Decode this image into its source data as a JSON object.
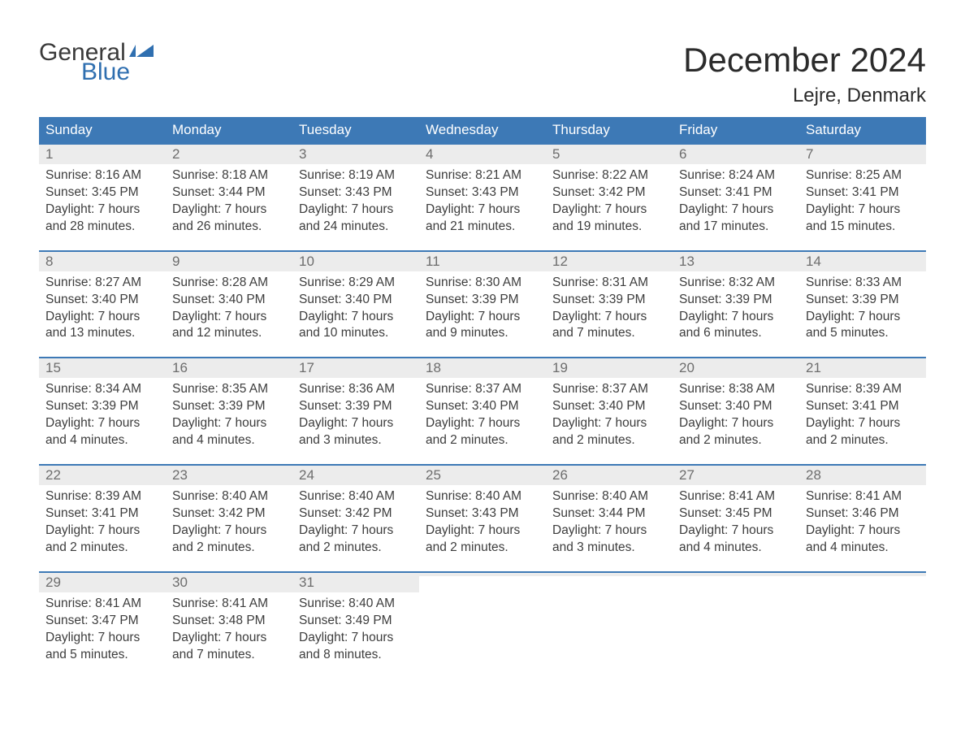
{
  "brand": {
    "word1": "General",
    "word2": "Blue",
    "tri_color": "#2f6fb0"
  },
  "header": {
    "month_title": "December 2024",
    "location": "Lejre, Denmark"
  },
  "colors": {
    "header_bg": "#3d79b6",
    "header_text": "#ffffff",
    "week_border": "#3d79b6",
    "daynum_bg": "#ececec",
    "daynum_text": "#6d6d6d",
    "body_text": "#3d3d3d",
    "page_bg": "#ffffff"
  },
  "day_names": [
    "Sunday",
    "Monday",
    "Tuesday",
    "Wednesday",
    "Thursday",
    "Friday",
    "Saturday"
  ],
  "weeks": [
    [
      {
        "n": "1",
        "sr": "Sunrise: 8:16 AM",
        "ss": "Sunset: 3:45 PM",
        "d1": "Daylight: 7 hours",
        "d2": "and 28 minutes."
      },
      {
        "n": "2",
        "sr": "Sunrise: 8:18 AM",
        "ss": "Sunset: 3:44 PM",
        "d1": "Daylight: 7 hours",
        "d2": "and 26 minutes."
      },
      {
        "n": "3",
        "sr": "Sunrise: 8:19 AM",
        "ss": "Sunset: 3:43 PM",
        "d1": "Daylight: 7 hours",
        "d2": "and 24 minutes."
      },
      {
        "n": "4",
        "sr": "Sunrise: 8:21 AM",
        "ss": "Sunset: 3:43 PM",
        "d1": "Daylight: 7 hours",
        "d2": "and 21 minutes."
      },
      {
        "n": "5",
        "sr": "Sunrise: 8:22 AM",
        "ss": "Sunset: 3:42 PM",
        "d1": "Daylight: 7 hours",
        "d2": "and 19 minutes."
      },
      {
        "n": "6",
        "sr": "Sunrise: 8:24 AM",
        "ss": "Sunset: 3:41 PM",
        "d1": "Daylight: 7 hours",
        "d2": "and 17 minutes."
      },
      {
        "n": "7",
        "sr": "Sunrise: 8:25 AM",
        "ss": "Sunset: 3:41 PM",
        "d1": "Daylight: 7 hours",
        "d2": "and 15 minutes."
      }
    ],
    [
      {
        "n": "8",
        "sr": "Sunrise: 8:27 AM",
        "ss": "Sunset: 3:40 PM",
        "d1": "Daylight: 7 hours",
        "d2": "and 13 minutes."
      },
      {
        "n": "9",
        "sr": "Sunrise: 8:28 AM",
        "ss": "Sunset: 3:40 PM",
        "d1": "Daylight: 7 hours",
        "d2": "and 12 minutes."
      },
      {
        "n": "10",
        "sr": "Sunrise: 8:29 AM",
        "ss": "Sunset: 3:40 PM",
        "d1": "Daylight: 7 hours",
        "d2": "and 10 minutes."
      },
      {
        "n": "11",
        "sr": "Sunrise: 8:30 AM",
        "ss": "Sunset: 3:39 PM",
        "d1": "Daylight: 7 hours",
        "d2": "and 9 minutes."
      },
      {
        "n": "12",
        "sr": "Sunrise: 8:31 AM",
        "ss": "Sunset: 3:39 PM",
        "d1": "Daylight: 7 hours",
        "d2": "and 7 minutes."
      },
      {
        "n": "13",
        "sr": "Sunrise: 8:32 AM",
        "ss": "Sunset: 3:39 PM",
        "d1": "Daylight: 7 hours",
        "d2": "and 6 minutes."
      },
      {
        "n": "14",
        "sr": "Sunrise: 8:33 AM",
        "ss": "Sunset: 3:39 PM",
        "d1": "Daylight: 7 hours",
        "d2": "and 5 minutes."
      }
    ],
    [
      {
        "n": "15",
        "sr": "Sunrise: 8:34 AM",
        "ss": "Sunset: 3:39 PM",
        "d1": "Daylight: 7 hours",
        "d2": "and 4 minutes."
      },
      {
        "n": "16",
        "sr": "Sunrise: 8:35 AM",
        "ss": "Sunset: 3:39 PM",
        "d1": "Daylight: 7 hours",
        "d2": "and 4 minutes."
      },
      {
        "n": "17",
        "sr": "Sunrise: 8:36 AM",
        "ss": "Sunset: 3:39 PM",
        "d1": "Daylight: 7 hours",
        "d2": "and 3 minutes."
      },
      {
        "n": "18",
        "sr": "Sunrise: 8:37 AM",
        "ss": "Sunset: 3:40 PM",
        "d1": "Daylight: 7 hours",
        "d2": "and 2 minutes."
      },
      {
        "n": "19",
        "sr": "Sunrise: 8:37 AM",
        "ss": "Sunset: 3:40 PM",
        "d1": "Daylight: 7 hours",
        "d2": "and 2 minutes."
      },
      {
        "n": "20",
        "sr": "Sunrise: 8:38 AM",
        "ss": "Sunset: 3:40 PM",
        "d1": "Daylight: 7 hours",
        "d2": "and 2 minutes."
      },
      {
        "n": "21",
        "sr": "Sunrise: 8:39 AM",
        "ss": "Sunset: 3:41 PM",
        "d1": "Daylight: 7 hours",
        "d2": "and 2 minutes."
      }
    ],
    [
      {
        "n": "22",
        "sr": "Sunrise: 8:39 AM",
        "ss": "Sunset: 3:41 PM",
        "d1": "Daylight: 7 hours",
        "d2": "and 2 minutes."
      },
      {
        "n": "23",
        "sr": "Sunrise: 8:40 AM",
        "ss": "Sunset: 3:42 PM",
        "d1": "Daylight: 7 hours",
        "d2": "and 2 minutes."
      },
      {
        "n": "24",
        "sr": "Sunrise: 8:40 AM",
        "ss": "Sunset: 3:42 PM",
        "d1": "Daylight: 7 hours",
        "d2": "and 2 minutes."
      },
      {
        "n": "25",
        "sr": "Sunrise: 8:40 AM",
        "ss": "Sunset: 3:43 PM",
        "d1": "Daylight: 7 hours",
        "d2": "and 2 minutes."
      },
      {
        "n": "26",
        "sr": "Sunrise: 8:40 AM",
        "ss": "Sunset: 3:44 PM",
        "d1": "Daylight: 7 hours",
        "d2": "and 3 minutes."
      },
      {
        "n": "27",
        "sr": "Sunrise: 8:41 AM",
        "ss": "Sunset: 3:45 PM",
        "d1": "Daylight: 7 hours",
        "d2": "and 4 minutes."
      },
      {
        "n": "28",
        "sr": "Sunrise: 8:41 AM",
        "ss": "Sunset: 3:46 PM",
        "d1": "Daylight: 7 hours",
        "d2": "and 4 minutes."
      }
    ],
    [
      {
        "n": "29",
        "sr": "Sunrise: 8:41 AM",
        "ss": "Sunset: 3:47 PM",
        "d1": "Daylight: 7 hours",
        "d2": "and 5 minutes."
      },
      {
        "n": "30",
        "sr": "Sunrise: 8:41 AM",
        "ss": "Sunset: 3:48 PM",
        "d1": "Daylight: 7 hours",
        "d2": "and 7 minutes."
      },
      {
        "n": "31",
        "sr": "Sunrise: 8:40 AM",
        "ss": "Sunset: 3:49 PM",
        "d1": "Daylight: 7 hours",
        "d2": "and 8 minutes."
      },
      null,
      null,
      null,
      null
    ]
  ]
}
